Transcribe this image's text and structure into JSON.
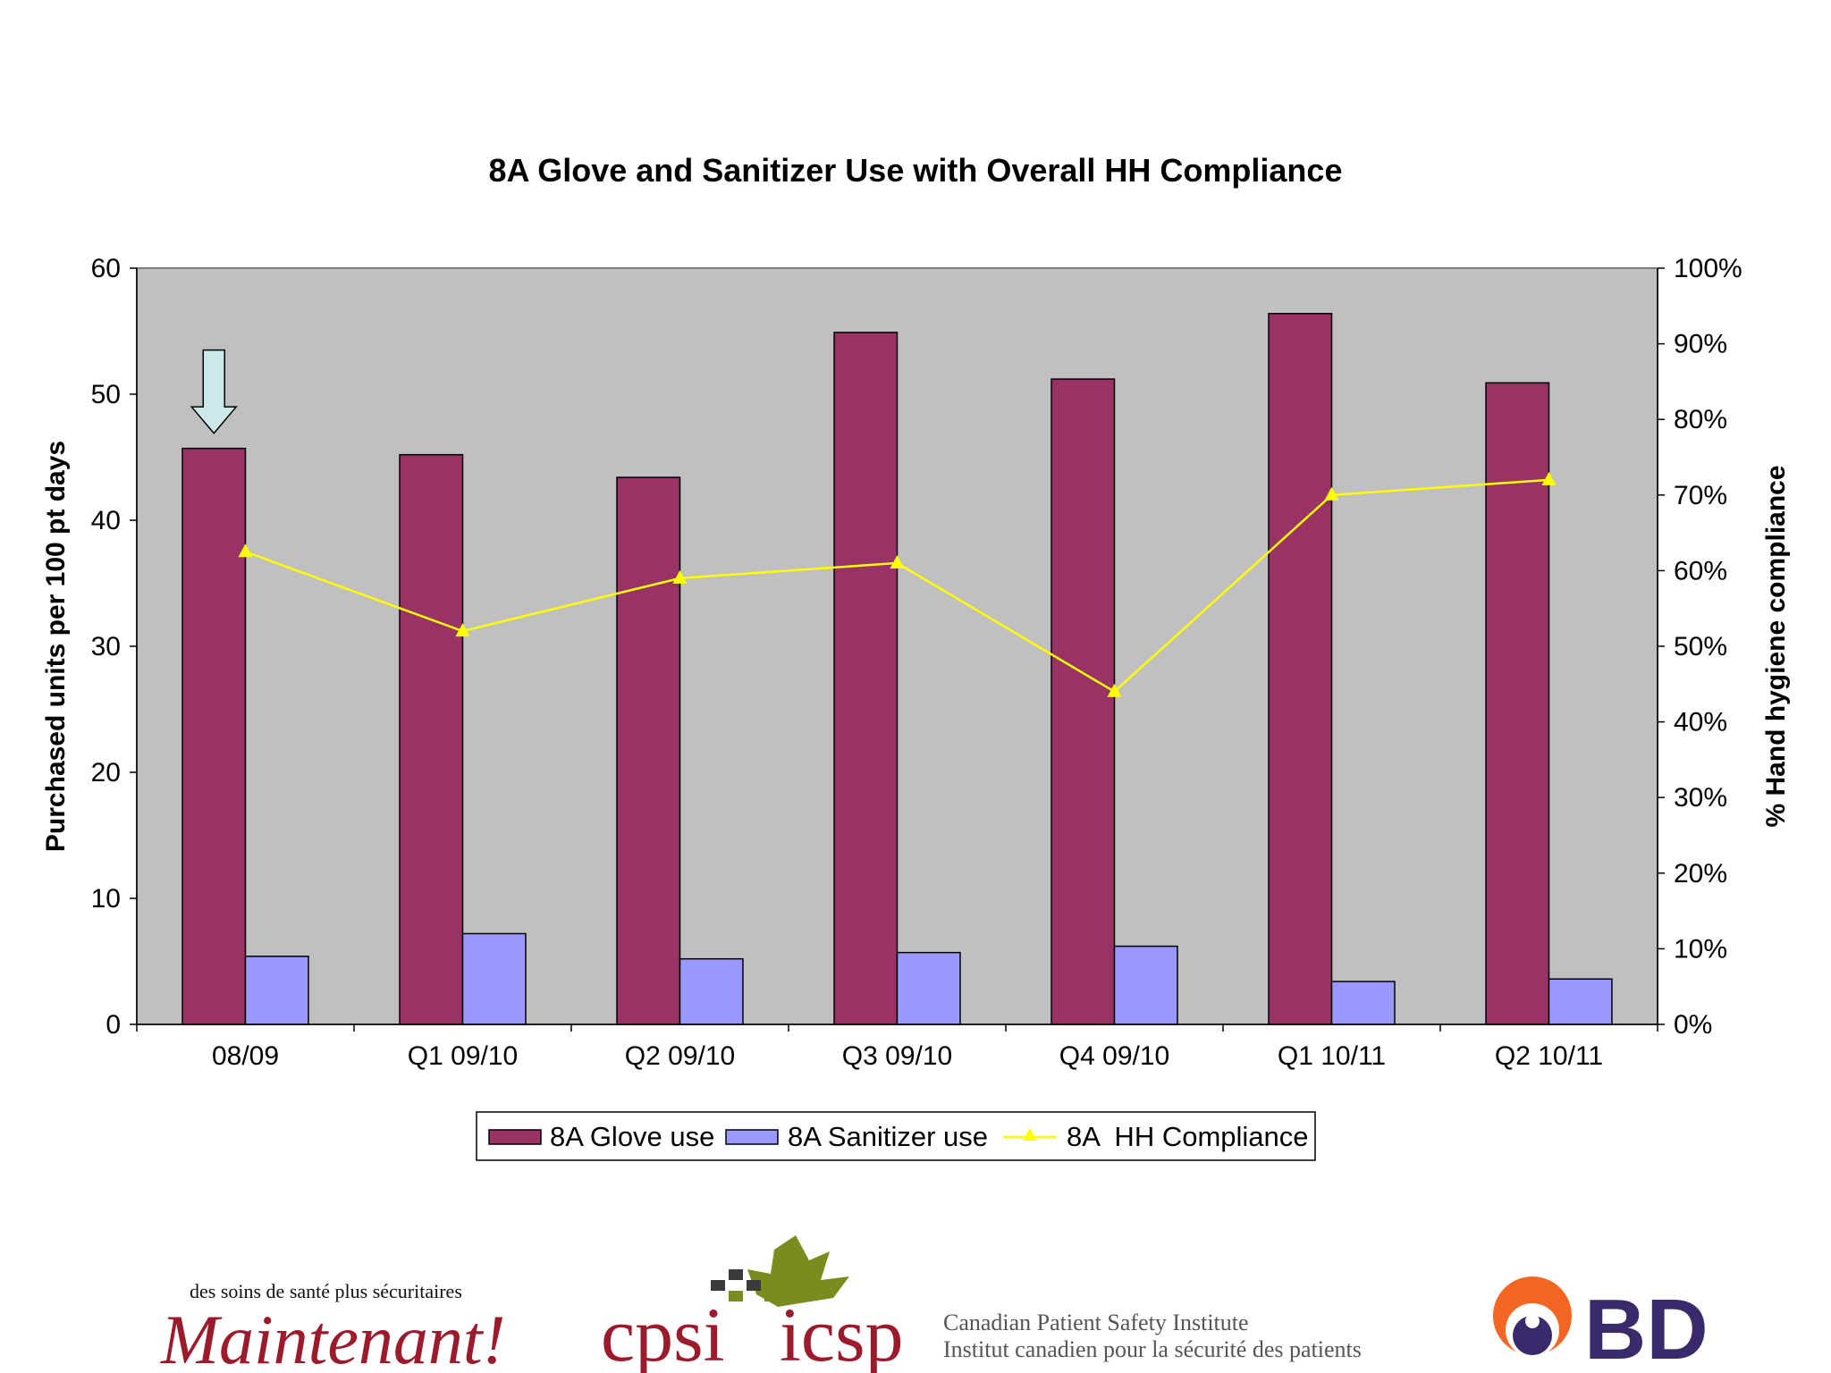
{
  "chart_data": {
    "type": "bar",
    "title": "8A Glove and Sanitizer Use with Overall HH Compliance",
    "categories": [
      "08/09",
      "Q1 09/10",
      "Q2 09/10",
      "Q3 09/10",
      "Q4 09/10",
      "Q1 10/11",
      "Q2 10/11"
    ],
    "series": [
      {
        "name": "8A Glove use",
        "kind": "bar",
        "axis": "left",
        "color": "#993366",
        "values": [
          45.7,
          45.2,
          43.4,
          54.9,
          51.2,
          56.4,
          50.9
        ]
      },
      {
        "name": "8A Sanitizer use",
        "kind": "bar",
        "axis": "left",
        "color": "#9999ff",
        "values": [
          5.4,
          7.2,
          5.2,
          5.7,
          6.2,
          3.4,
          3.6
        ]
      },
      {
        "name": "8A  HH Compliance",
        "kind": "line",
        "axis": "right",
        "color": "#ffff00",
        "values": [
          62.5,
          52,
          59,
          61,
          44,
          70,
          72
        ]
      }
    ],
    "ylabel": "Purchased units per 100 pt days",
    "ylim": [
      0,
      60
    ],
    "yticks": [
      "0",
      "10",
      "20",
      "30",
      "40",
      "50",
      "60"
    ],
    "y2label": "% Hand hygiene compliance",
    "y2lim": [
      0,
      100
    ],
    "y2ticks": [
      "0%",
      "10%",
      "20%",
      "30%",
      "40%",
      "50%",
      "60%",
      "70%",
      "80%",
      "90%",
      "100%"
    ],
    "grid": false,
    "plot_background": "#c0c0c0",
    "legend_position": "bottom",
    "annotation": {
      "type": "down-arrow",
      "category": "08/09",
      "color": "#cce8e8"
    }
  },
  "logos": {
    "maintenant_tagline": "des soins de santé plus sécuritaires",
    "maintenant_word": "Maintenant!",
    "cpsi_left": "cpsi",
    "cpsi_right": "icsp",
    "cpsi_name_en": "Canadian Patient Safety Institute",
    "cpsi_name_fr": "Institut canadien pour la sécurité des patients",
    "bd": "BD"
  }
}
